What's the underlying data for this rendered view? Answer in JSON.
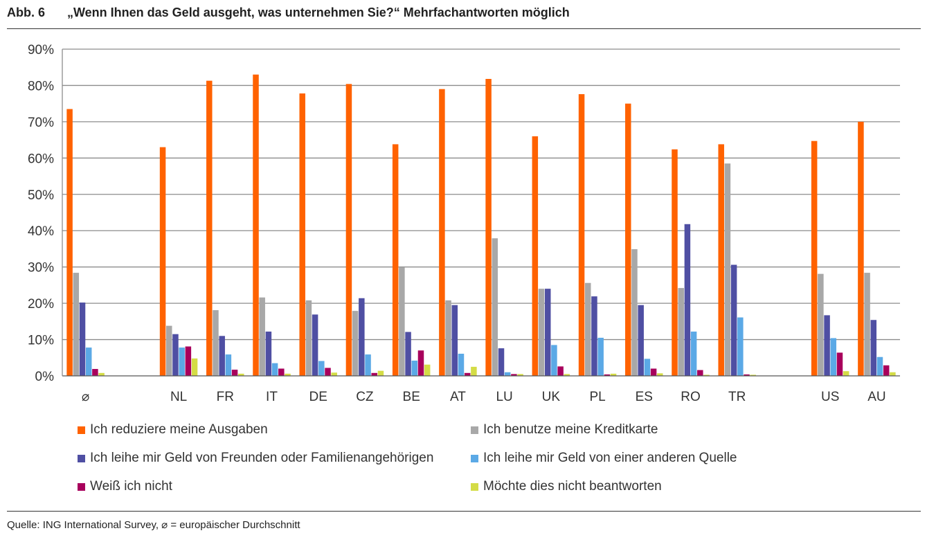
{
  "header": {
    "fig_number": "Abb. 6",
    "title": "„Wenn Ihnen das Geld ausgeht, was unternehmen Sie?“ Mehrfachantworten möglich"
  },
  "footer": {
    "source": "Quelle: ING International Survey, ⌀ = europäischer Durchschnitt"
  },
  "chart_data": {
    "type": "bar",
    "title": "„Wenn Ihnen das Geld ausgeht, was unternehmen Sie?“ Mehrfachantworten möglich",
    "xlabel": "",
    "ylabel": "",
    "ylim": [
      0,
      90
    ],
    "y_ticks": [
      "0%",
      "10%",
      "20%",
      "30%",
      "40%",
      "50%",
      "60%",
      "70%",
      "80%",
      "90%"
    ],
    "grid": true,
    "legend_position": "bottom",
    "categories": [
      "⌀",
      "",
      "NL",
      "FR",
      "IT",
      "DE",
      "CZ",
      "BE",
      "AT",
      "LU",
      "UK",
      "PL",
      "ES",
      "RO",
      "TR",
      "",
      "US",
      "AU"
    ],
    "series": [
      {
        "name": "Ich reduziere meine Ausgaben",
        "color": "#FF6200",
        "values": [
          73.5,
          null,
          63,
          81.3,
          83,
          77.8,
          80.4,
          63.8,
          79,
          81.8,
          66,
          77.6,
          75,
          62.4,
          63.8,
          null,
          64.7,
          70
        ]
      },
      {
        "name": "Ich benutze meine Kreditkarte",
        "color": "#A8A8A8",
        "values": [
          28.4,
          null,
          13.8,
          18.1,
          21.6,
          20.8,
          17.9,
          29.9,
          20.8,
          37.9,
          24,
          25.6,
          34.9,
          24.2,
          58.5,
          null,
          28.1,
          28.4
        ]
      },
      {
        "name": "Ich leihe mir Geld von Freunden oder Familienangehörigen",
        "color": "#4F4FA3",
        "values": [
          20.2,
          null,
          11.5,
          11,
          12.2,
          16.9,
          21.4,
          12.1,
          19.5,
          7.6,
          24,
          21.9,
          19.5,
          41.8,
          30.6,
          null,
          16.7,
          15.4
        ]
      },
      {
        "name": "Ich leihe mir Geld von einer anderen Quelle",
        "color": "#5BA9E6",
        "values": [
          7.8,
          null,
          7.8,
          5.9,
          3.5,
          4.1,
          5.9,
          4.2,
          6.1,
          1,
          8.5,
          10.5,
          4.7,
          12.2,
          16.1,
          null,
          10.4,
          5.2
        ]
      },
      {
        "name": "Weiß ich nicht",
        "color": "#A8005C",
        "values": [
          1.9,
          null,
          8.1,
          1.7,
          2,
          2.2,
          0.8,
          7,
          0.8,
          0.5,
          2.6,
          0.4,
          2,
          1.6,
          0.4,
          null,
          6.4,
          2.9
        ]
      },
      {
        "name": "Möchte dies nicht beantworten",
        "color": "#D4DC46",
        "values": [
          0.8,
          null,
          4.8,
          0.6,
          0.6,
          0.9,
          1.4,
          3.1,
          2.5,
          0.5,
          0.5,
          0.6,
          0.7,
          0.3,
          0.3,
          null,
          1.3,
          1
        ]
      }
    ]
  }
}
